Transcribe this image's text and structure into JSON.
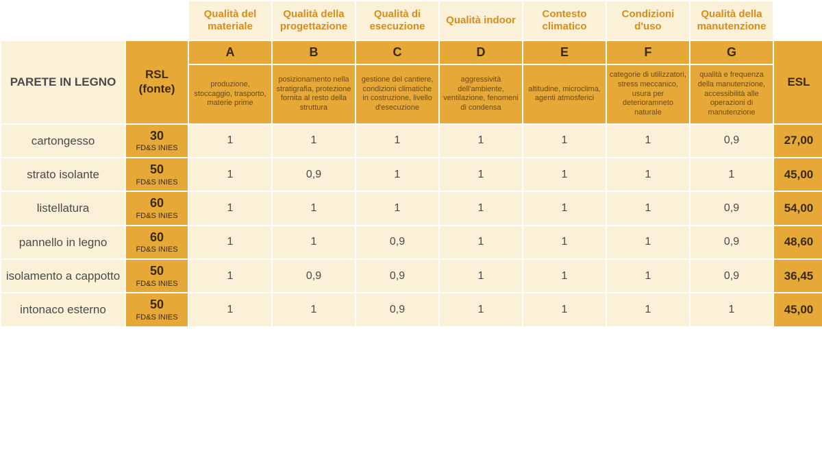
{
  "table": {
    "title": "PARETE IN LEGNO",
    "rsl_header": "RSL (fonte)",
    "esl_header": "ESL",
    "colors": {
      "light_bg": "#faf1d8",
      "accent_bg": "#e6a836",
      "heading_text": "#d88c1b",
      "dark_text": "#3a2a0a",
      "body_text": "#4a4a4a",
      "desc_text": "#6b4a12"
    },
    "columns": [
      {
        "letter": "A",
        "title": "Qualità del materiale",
        "desc": "produzione, stoccaggio, trasporto, materie prime"
      },
      {
        "letter": "B",
        "title": "Qualità della progettazione",
        "desc": "posizionamento nella stratigrafia, protezione fornita al resto della struttura"
      },
      {
        "letter": "C",
        "title": "Qualità di esecuzione",
        "desc": "gestione del cantiere, condizioni climatiche in costruzione, livello d'esecuzione"
      },
      {
        "letter": "D",
        "title": "Qualità indoor",
        "desc": "aggressività dell'ambiente, ventilazione, fenomeni di condensa"
      },
      {
        "letter": "E",
        "title": "Contesto climatico",
        "desc": "altitudine, microclima, agenti atmosferici"
      },
      {
        "letter": "F",
        "title": "Condizioni d'uso",
        "desc": "categorie di utilizzatori, stress meccanico, usura per deterioramneto naturale"
      },
      {
        "letter": "G",
        "title": "Qualità della manutenzione",
        "desc": "qualità e frequenza della manutenzione, accessibilità alle operazioni di manutenzione"
      }
    ],
    "rows": [
      {
        "label": "cartongesso",
        "rsl": "30",
        "rsl_source": "FD&S INIES",
        "factors": [
          "1",
          "1",
          "1",
          "1",
          "1",
          "1",
          "0,9"
        ],
        "esl": "27,00"
      },
      {
        "label": "strato isolante",
        "rsl": "50",
        "rsl_source": "FD&S INIES",
        "factors": [
          "1",
          "0,9",
          "1",
          "1",
          "1",
          "1",
          "1"
        ],
        "esl": "45,00"
      },
      {
        "label": "listellatura",
        "rsl": "60",
        "rsl_source": "FD&S INIES",
        "factors": [
          "1",
          "1",
          "1",
          "1",
          "1",
          "1",
          "0,9"
        ],
        "esl": "54,00"
      },
      {
        "label": "pannello in legno",
        "rsl": "60",
        "rsl_source": "FD&S INIES",
        "factors": [
          "1",
          "1",
          "0,9",
          "1",
          "1",
          "1",
          "0,9"
        ],
        "esl": "48,60"
      },
      {
        "label": "isolamento a cappotto",
        "rsl": "50",
        "rsl_source": "FD&S INIES",
        "factors": [
          "1",
          "0,9",
          "0,9",
          "1",
          "1",
          "1",
          "0,9"
        ],
        "esl": "36,45"
      },
      {
        "label": "intonaco esterno",
        "rsl": "50",
        "rsl_source": "FD&S INIES",
        "factors": [
          "1",
          "1",
          "0,9",
          "1",
          "1",
          "1",
          "1"
        ],
        "esl": "45,00"
      }
    ]
  }
}
